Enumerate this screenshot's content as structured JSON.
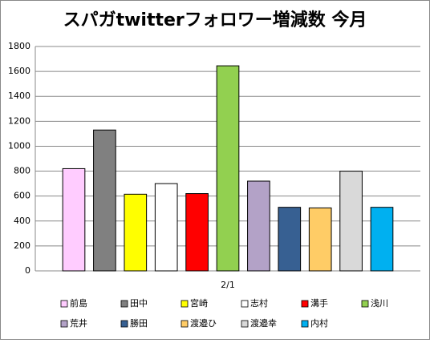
{
  "chart_data": {
    "type": "bar",
    "title": "スパガtwitterフォロワー増減数 今月",
    "categories": [
      "2/1"
    ],
    "series": [
      {
        "name": "前島",
        "color": "#ffccff",
        "values": [
          820
        ]
      },
      {
        "name": "田中",
        "color": "#808080",
        "values": [
          1130
        ]
      },
      {
        "name": "宮崎",
        "color": "#ffff00",
        "values": [
          615
        ]
      },
      {
        "name": "志村",
        "color": "#ffffff",
        "values": [
          700
        ]
      },
      {
        "name": "溝手",
        "color": "#ff0000",
        "values": [
          620
        ]
      },
      {
        "name": "浅川",
        "color": "#92d050",
        "values": [
          1645
        ]
      },
      {
        "name": "荒井",
        "color": "#b3a2c7",
        "values": [
          720
        ]
      },
      {
        "name": "勝田",
        "color": "#376092",
        "values": [
          510
        ]
      },
      {
        "name": "渡邉ひ",
        "color": "#ffcc66",
        "values": [
          505
        ]
      },
      {
        "name": "渡邉幸",
        "color": "#d9d9d9",
        "values": [
          800
        ]
      },
      {
        "name": "内村",
        "color": "#00b0f0",
        "values": [
          510
        ]
      }
    ],
    "ylim": [
      0,
      1800
    ],
    "yticks": [
      0,
      200,
      400,
      600,
      800,
      1000,
      1200,
      1400,
      1600,
      1800
    ],
    "grid": true,
    "legend": "bottom"
  }
}
